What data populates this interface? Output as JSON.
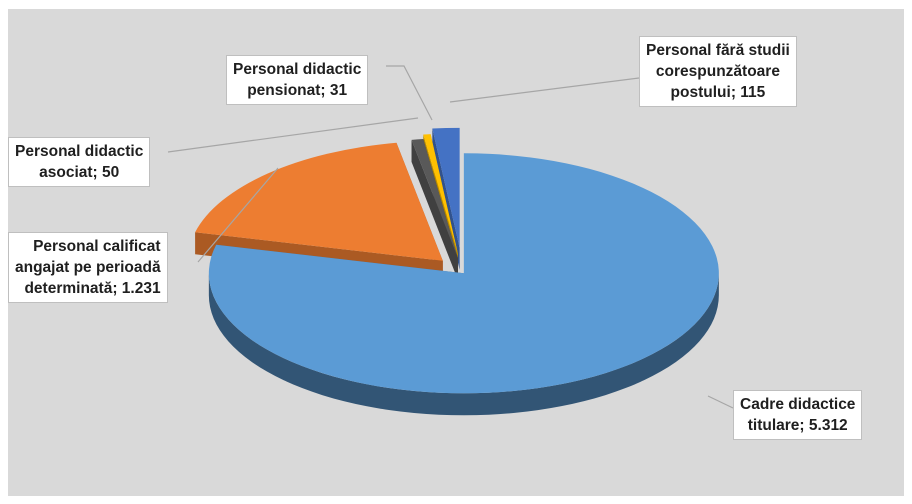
{
  "chart_data": {
    "type": "pie",
    "style": "3d-exploded",
    "colors": [
      "#5b9bd5",
      "#ed7d31",
      "#595959",
      "#ffc000",
      "#4472c4"
    ],
    "slices": [
      {
        "label_lines": [
          "Cadre didactice",
          "titulare; 5.312"
        ],
        "name": "Cadre didactice titulare",
        "value": 5312
      },
      {
        "label_lines": [
          "Personal calificat",
          "angajat  pe perioadă",
          "determinată; 1.231"
        ],
        "name": "Personal calificat angajat pe perioadă determinată",
        "value": 1231
      },
      {
        "label_lines": [
          "Personal didactic",
          "asociat;  50"
        ],
        "name": "Personal didactic asociat",
        "value": 50
      },
      {
        "label_lines": [
          "Personal didactic",
          "pensionat; 31"
        ],
        "name": "Personal didactic pensionat",
        "value": 31
      },
      {
        "label_lines": [
          "Personal fără studii",
          "corespunzătoare",
          "postului; 115"
        ],
        "name": "Personal fără studii corespunzătoare postului",
        "value": 115
      }
    ]
  }
}
